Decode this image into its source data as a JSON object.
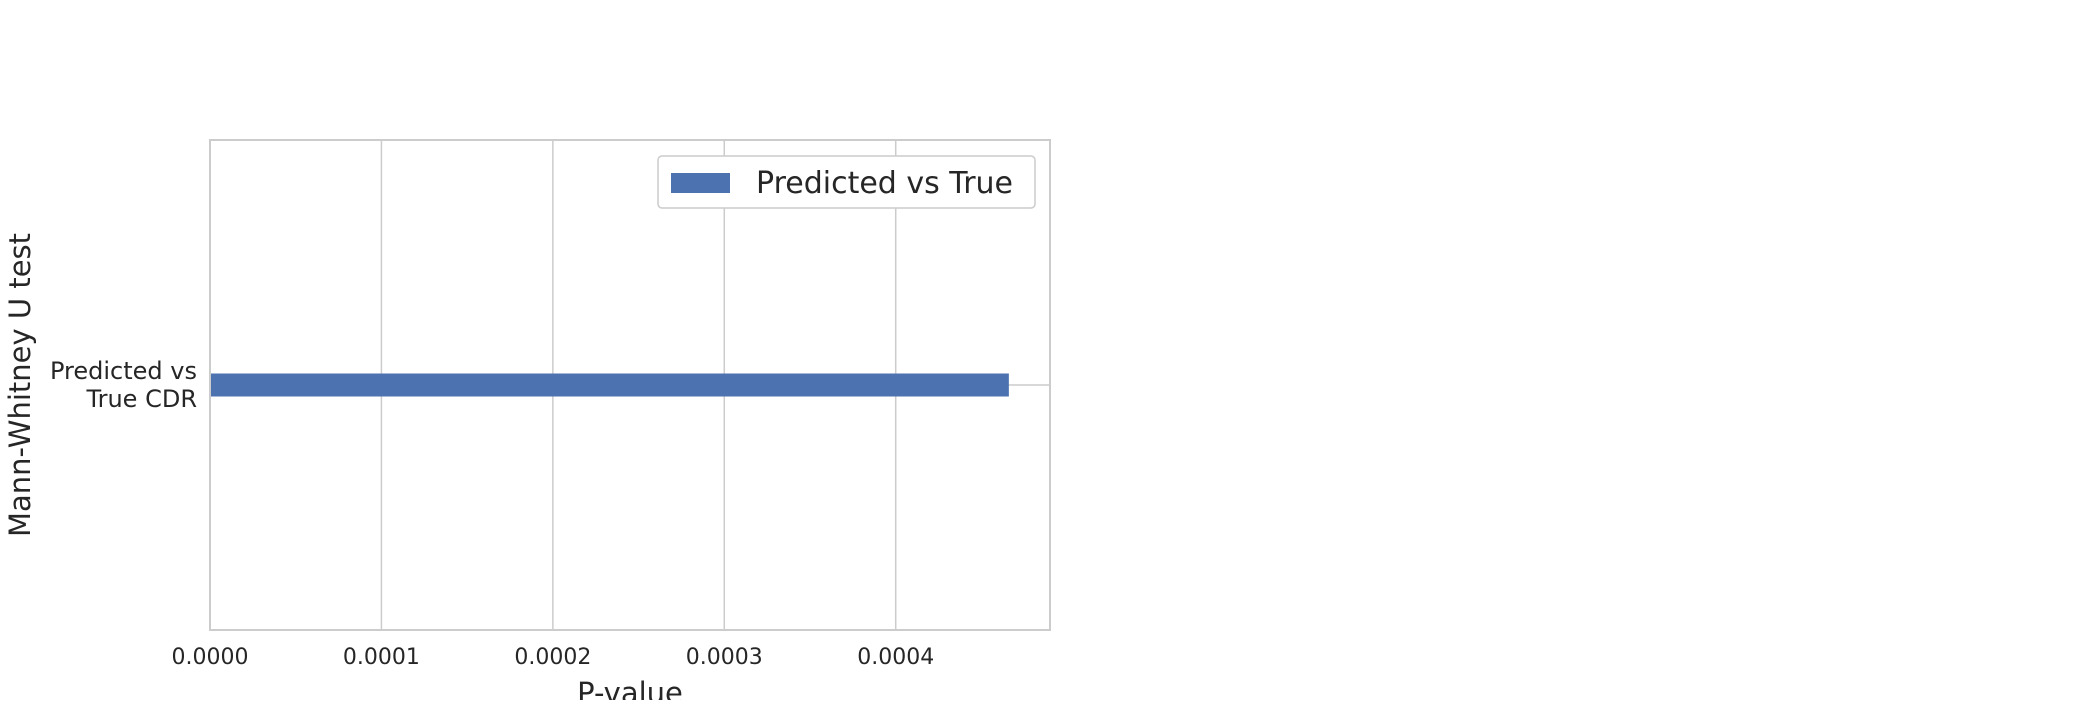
{
  "chart_data": {
    "type": "bar",
    "orientation": "horizontal",
    "categories": [
      "Predicted vs\nTrue CDR"
    ],
    "series": [
      {
        "name": "Predicted vs True",
        "values": [
          0.000466
        ]
      }
    ],
    "xlabel": "P-value",
    "ylabel": "Mann-Whitney U test",
    "xlim": [
      0,
      0.00049
    ],
    "xticks": [
      "0.0000",
      "0.0001",
      "0.0002",
      "0.0003",
      "0.0004"
    ],
    "grid": true,
    "legend_position": "top-right",
    "colors": {
      "bar": "#4c72b0",
      "grid": "#cccccc",
      "frame": "#cccccc",
      "text": "#262626"
    }
  }
}
